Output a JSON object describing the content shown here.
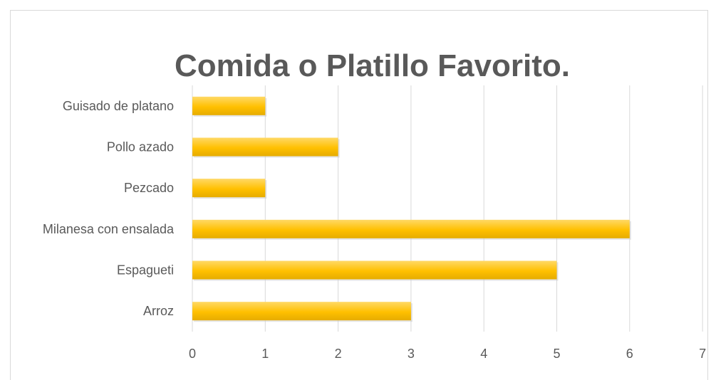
{
  "chart_data": {
    "type": "bar",
    "orientation": "horizontal",
    "title": "Comida o Platillo Favorito.",
    "categories": [
      "Guisado de platano",
      "Pollo azado",
      "Pezcado",
      "Milanesa con ensalada",
      "Espagueti",
      "Arroz"
    ],
    "values": [
      1,
      2,
      1,
      6,
      5,
      3
    ],
    "xlim": [
      0,
      7
    ],
    "xticks": [
      "0",
      "1",
      "2",
      "3",
      "4",
      "5",
      "6",
      "7"
    ],
    "grid": true,
    "bar_color": "#ffc000",
    "bar_color_light": "#ffd966"
  }
}
